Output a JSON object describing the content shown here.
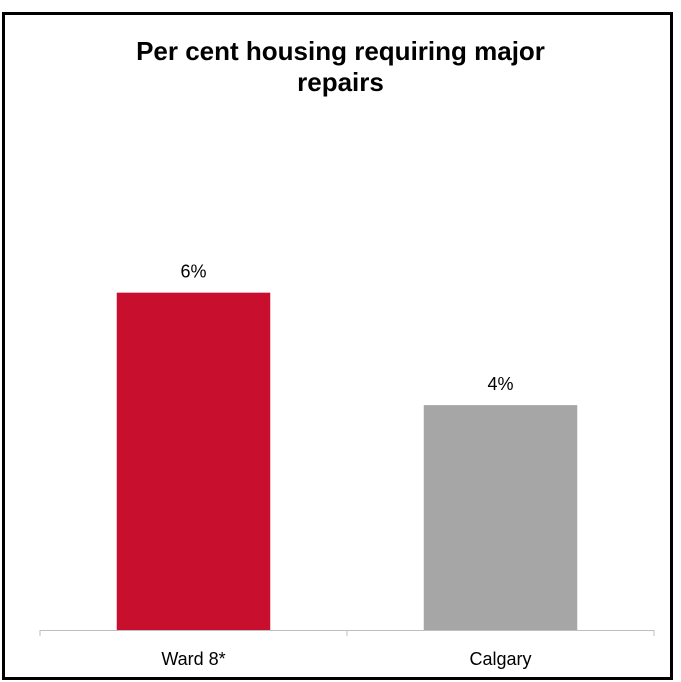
{
  "chart_data": {
    "type": "bar",
    "title_lines": [
      "Per cent housing requiring major",
      "repairs"
    ],
    "categories": [
      "Ward 8*",
      "Calgary"
    ],
    "values": [
      6,
      4
    ],
    "value_labels": [
      "6%",
      "4%"
    ],
    "colors": [
      "#c8102e",
      "#a6a6a6"
    ],
    "ylim": [
      0,
      9
    ],
    "grid": false,
    "legend": "none"
  }
}
